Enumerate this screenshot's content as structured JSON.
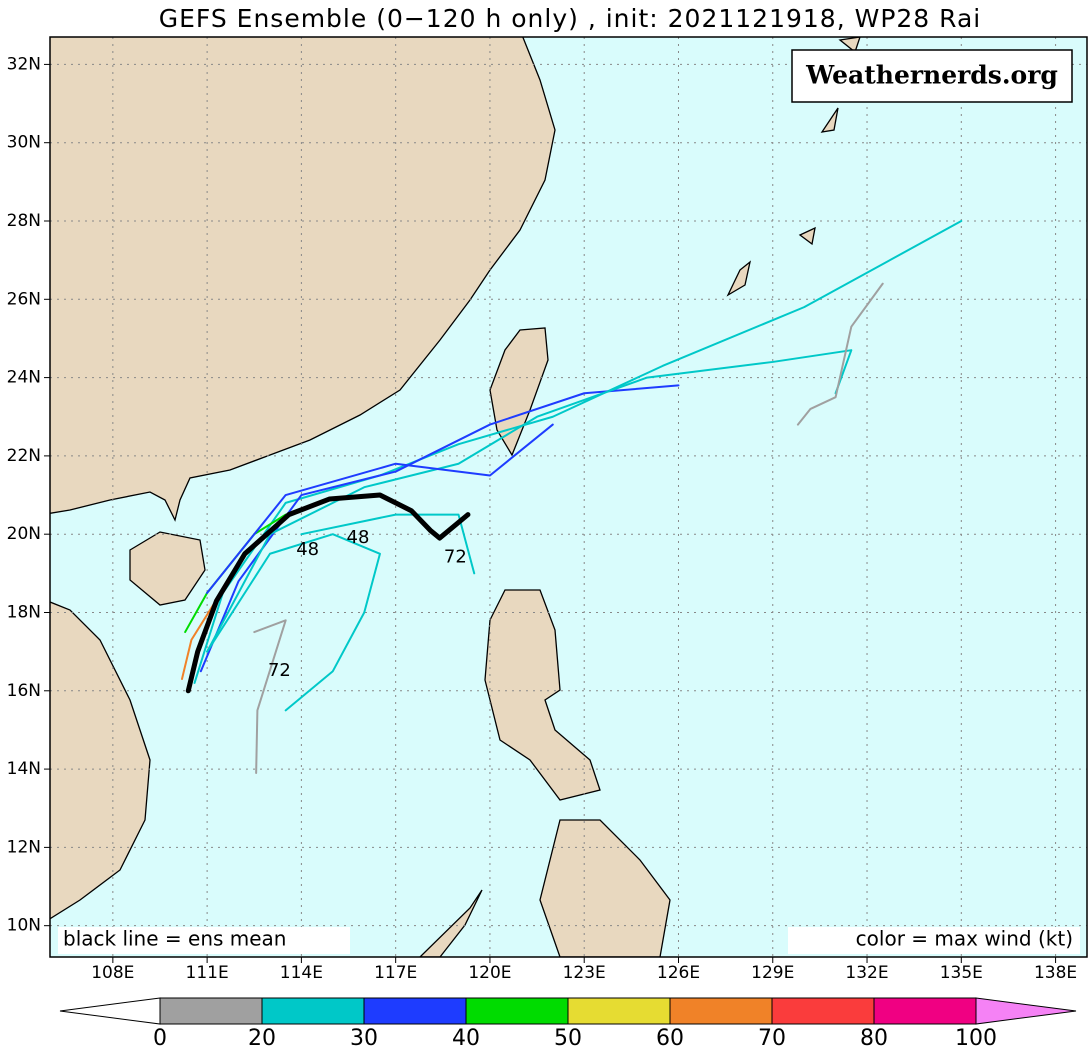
{
  "chart_data": {
    "type": "track-map",
    "title": "GEFS Ensemble (0−120 h only) , init: 2021121918, WP28 Rai",
    "watermark": "Weathernerds.org",
    "note_left": "black line = ens mean",
    "note_right": "color = max wind (kt)",
    "xlim": [
      106,
      139
    ],
    "ylim": [
      9.2,
      32.7
    ],
    "xticks": [
      {
        "value": 108,
        "label": "108E"
      },
      {
        "value": 111,
        "label": "111E"
      },
      {
        "value": 114,
        "label": "114E"
      },
      {
        "value": 117,
        "label": "117E"
      },
      {
        "value": 120,
        "label": "120E"
      },
      {
        "value": 123,
        "label": "123E"
      },
      {
        "value": 126,
        "label": "126E"
      },
      {
        "value": 129,
        "label": "129E"
      },
      {
        "value": 132,
        "label": "132E"
      },
      {
        "value": 135,
        "label": "135E"
      },
      {
        "value": 138,
        "label": "138E"
      }
    ],
    "yticks": [
      {
        "value": 10,
        "label": "10N"
      },
      {
        "value": 12,
        "label": "12N"
      },
      {
        "value": 14,
        "label": "14N"
      },
      {
        "value": 16,
        "label": "16N"
      },
      {
        "value": 18,
        "label": "18N"
      },
      {
        "value": 20,
        "label": "20N"
      },
      {
        "value": 22,
        "label": "22N"
      },
      {
        "value": 24,
        "label": "24N"
      },
      {
        "value": 26,
        "label": "26N"
      },
      {
        "value": 28,
        "label": "28N"
      },
      {
        "value": 30,
        "label": "30N"
      },
      {
        "value": 32,
        "label": "32N"
      }
    ],
    "grid": true,
    "tracks": [
      {
        "color": "#00c8c8",
        "lon": [
          110.6,
          111.5,
          113.5,
          116.5,
          119,
          122,
          125.5,
          130,
          135
        ],
        "lat": [
          16.2,
          18.5,
          20.8,
          21.5,
          22.3,
          23,
          24.3,
          25.8,
          28
        ]
      },
      {
        "color": "#1e3cff",
        "lon": [
          110.8,
          112,
          114,
          117,
          120,
          123,
          126
        ],
        "lat": [
          16.5,
          18.8,
          21,
          21.6,
          22.8,
          23.6,
          23.8
        ]
      },
      {
        "color": "#00c8c8",
        "lon": [
          111,
          113,
          116,
          119,
          121.5,
          125,
          129,
          131.5,
          131
        ],
        "lat": [
          17,
          20,
          21.2,
          21.8,
          23,
          24,
          24.4,
          24.7,
          23.6
        ]
      },
      {
        "color": "#a0a0a0",
        "lon": [
          129.8,
          130.2,
          131,
          131.5,
          132.5
        ],
        "lat": [
          22.8,
          23.2,
          23.5,
          25.3,
          26.4
        ]
      },
      {
        "color": "#00c8c8",
        "lon": [
          111,
          113,
          115,
          116.5,
          116,
          115,
          113.5
        ],
        "lat": [
          17,
          19.5,
          20,
          19.5,
          18,
          16.5,
          15.5
        ]
      },
      {
        "color": "#a0a0a0",
        "lon": [
          112.5,
          113.5,
          112.6,
          112.56
        ],
        "lat": [
          17.5,
          17.8,
          15.5,
          13.9
        ]
      },
      {
        "color": "#00dc00",
        "lon": [
          110.3,
          111,
          112.5,
          113.5
        ],
        "lat": [
          17.5,
          18.5,
          20,
          20.5
        ]
      },
      {
        "color": "#f08228",
        "lon": [
          110.2,
          110.5,
          111.2
        ],
        "lat": [
          16.3,
          17.3,
          18.2
        ]
      },
      {
        "color": "#00c8c8",
        "lon": [
          114,
          117,
          119,
          119.5
        ],
        "lat": [
          20,
          20.5,
          20.5,
          19
        ]
      },
      {
        "color": "#1e3cff",
        "lon": [
          111,
          113.5,
          117,
          120,
          122
        ],
        "lat": [
          18.5,
          21,
          21.8,
          21.5,
          22.8
        ]
      }
    ],
    "mean_track": {
      "color": "#000000",
      "lon": [
        110.4,
        110.7,
        111.3,
        112.2,
        113.6,
        114.9,
        116.5,
        117.5,
        118.1,
        118.4,
        119.3
      ],
      "lat": [
        16,
        17,
        18.3,
        19.5,
        20.5,
        20.9,
        21,
        20.6,
        20.1,
        19.9,
        20.5
      ]
    },
    "annotations": [
      {
        "text": "72",
        "lon": 113.3,
        "lat": 16.5
      },
      {
        "text": "48",
        "lon": 115.8,
        "lat": 19.9
      },
      {
        "text": "72",
        "lon": 118.9,
        "lat": 19.4
      },
      {
        "text": "48",
        "lon": 114.2,
        "lat": 19.6
      }
    ],
    "colorbar": {
      "bounds": [
        0,
        20,
        30,
        40,
        50,
        60,
        70,
        80,
        100
      ],
      "colors": [
        "#a0a0a0",
        "#00c8c8",
        "#1e3cff",
        "#00dc00",
        "#e6dc32",
        "#f08228",
        "#fa3c3c",
        "#f00082"
      ],
      "under": "#ffffff",
      "over": "#f582f5"
    }
  }
}
